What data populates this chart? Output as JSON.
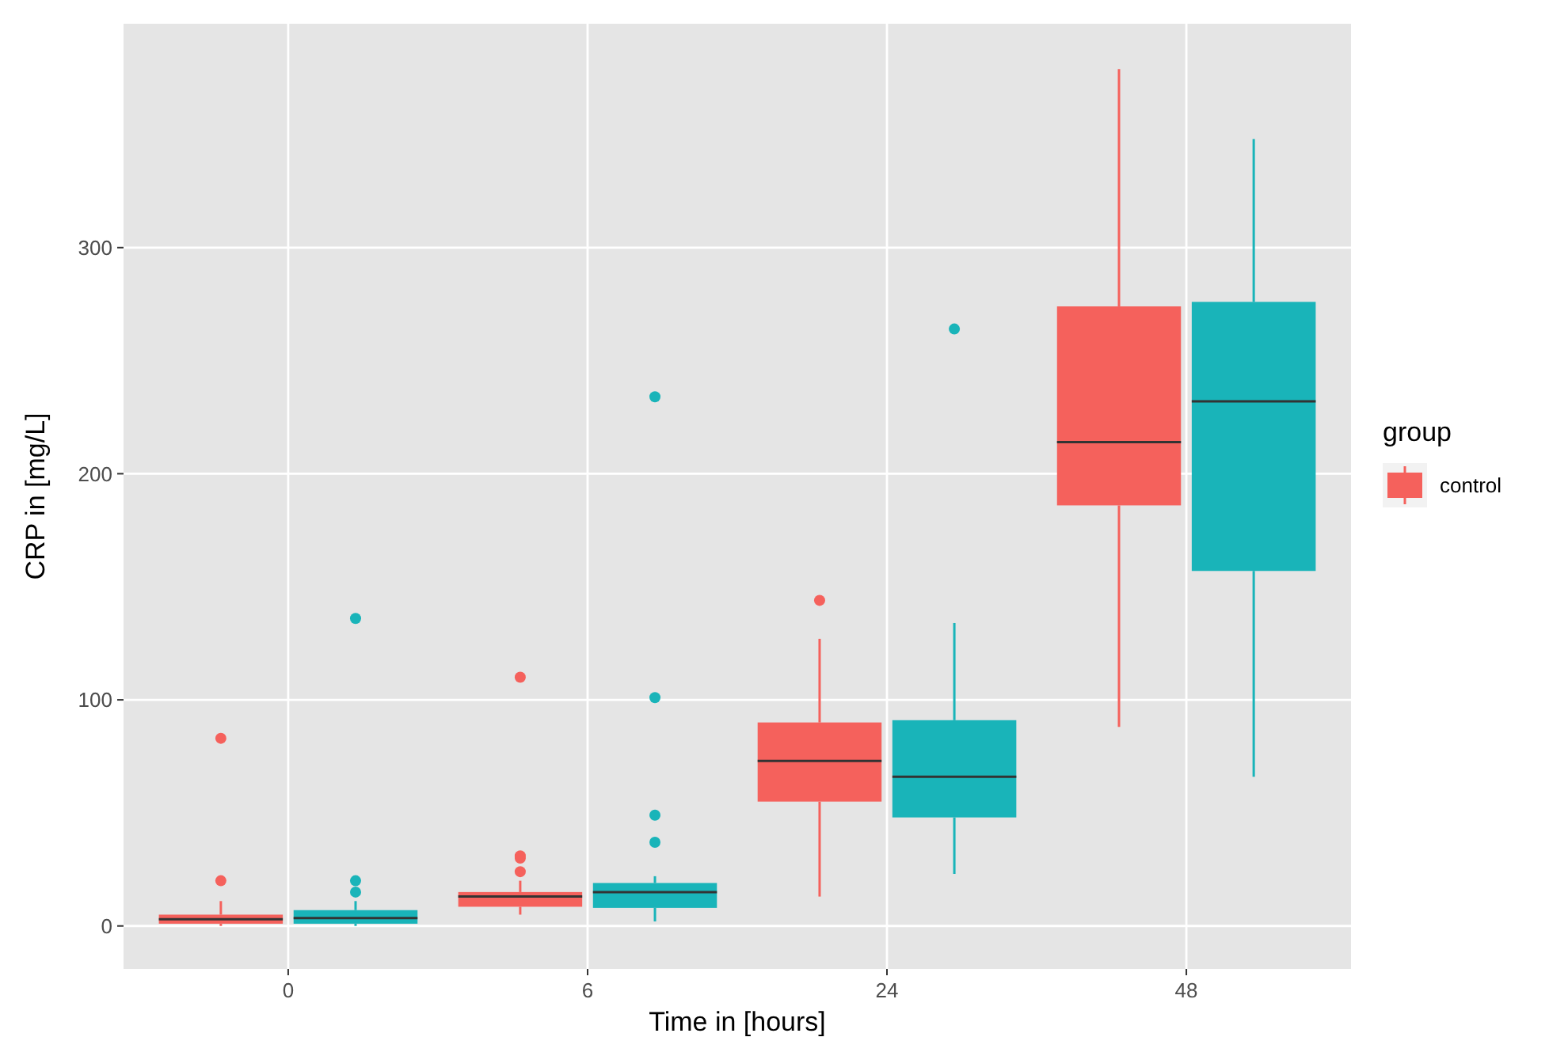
{
  "chart_data": {
    "type": "box",
    "xlabel": "Time in [hours]",
    "ylabel": "CRP in [mg/L]",
    "legend_title": "group",
    "categories": [
      "0",
      "6",
      "24",
      "48"
    ],
    "series": [
      {
        "name": "control",
        "color": "#f5615c",
        "boxes": [
          {
            "low": 0,
            "q1": 1,
            "median": 3,
            "q3": 5,
            "high": 11,
            "outliers": [
              20,
              83
            ]
          },
          {
            "low": 5,
            "q1": 8.5,
            "median": 13,
            "q3": 15,
            "high": 20,
            "outliers": [
              24,
              30,
              31,
              110
            ]
          },
          {
            "low": 13,
            "q1": 55,
            "median": 73,
            "q3": 90,
            "high": 127,
            "outliers": [
              144
            ]
          },
          {
            "low": 88,
            "q1": 186,
            "median": 214,
            "q3": 274,
            "high": 379
          }
        ]
      },
      {
        "color": "#19b4b9",
        "boxes": [
          {
            "low": 0,
            "q1": 1,
            "median": 3.5,
            "q3": 7,
            "high": 11,
            "outliers": [
              15,
              20,
              136
            ]
          },
          {
            "low": 2,
            "q1": 8,
            "median": 15,
            "q3": 19,
            "high": 22,
            "outliers": [
              37,
              49,
              101,
              234
            ]
          },
          {
            "low": 23,
            "q1": 48,
            "median": 66,
            "q3": 91,
            "high": 134,
            "outliers": [
              264
            ]
          },
          {
            "low": 66,
            "q1": 157,
            "median": 232,
            "q3": 276,
            "high": 348
          }
        ]
      }
    ],
    "ylim": [
      -19,
      399
    ],
    "yticks": [
      0,
      100,
      200,
      300
    ],
    "grid": true,
    "legend": "right"
  }
}
